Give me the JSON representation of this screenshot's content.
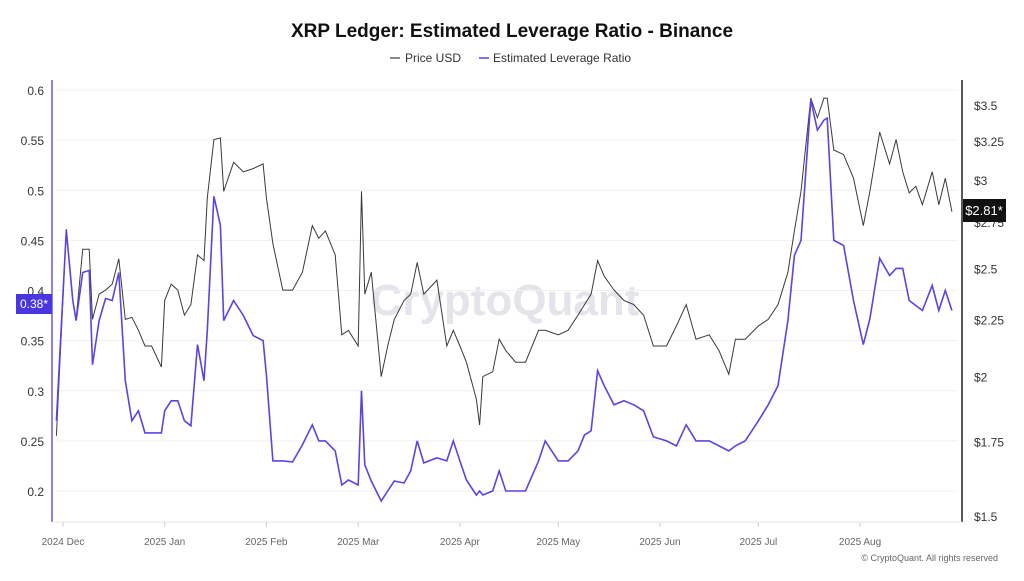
{
  "chart_data": {
    "type": "line",
    "title": "XRP Ledger: Estimated Leverage Ratio - Binance",
    "legend": {
      "placement": "top-center",
      "entries": [
        "Price USD",
        "Estimated Leverage Ratio"
      ]
    },
    "x_ticks": [
      {
        "date": "2024-12-01",
        "label": "2024 Dec"
      },
      {
        "date": "2025-01-01",
        "label": "2025 Jan"
      },
      {
        "date": "2025-02-01",
        "label": "2025 Feb"
      },
      {
        "date": "2025-03-01",
        "label": "2025 Mar"
      },
      {
        "date": "2025-04-01",
        "label": "2025 Apr"
      },
      {
        "date": "2025-05-01",
        "label": "2025 May"
      },
      {
        "date": "2025-06-01",
        "label": "2025 Jun"
      },
      {
        "date": "2025-07-01",
        "label": "2025 Jul"
      },
      {
        "date": "2025-08-01",
        "label": "2025 Aug"
      }
    ],
    "y_left": {
      "range": [
        0.17,
        0.61
      ],
      "scale": "linear",
      "ticks": [
        "0.6",
        "0.55",
        "0.5",
        "0.45",
        "0.4",
        "0.35",
        "0.3",
        "0.25",
        "0.2"
      ],
      "tick_values": [
        0.6,
        0.55,
        0.5,
        0.45,
        0.4,
        0.35,
        0.3,
        0.25,
        0.2
      ]
    },
    "y_right": {
      "range": [
        1.45,
        3.65
      ],
      "scale": "log",
      "ticks": [
        "$3.5",
        "$3.25",
        "$3",
        "$2.75",
        "$2.5",
        "$2.25",
        "$2",
        "$1.75",
        "$1.5"
      ],
      "tick_values": [
        3.5,
        3.25,
        3,
        2.75,
        2.5,
        2.25,
        2,
        1.75,
        1.5
      ]
    },
    "grid": true,
    "colors": {
      "price": "#3a3a3a",
      "leverage": "#5b44e0",
      "left_axis": "#6a5ae0",
      "right_axis": "#222222"
    },
    "last_value_labels": {
      "leverage": "0.38*",
      "price": "$2.81*"
    },
    "series": [
      {
        "name": "Price USD",
        "axis": "right",
        "points": [
          [
            "2024-11-29",
            1.77
          ],
          [
            "2024-12-02",
            2.71
          ],
          [
            "2024-12-04",
            2.34
          ],
          [
            "2024-12-05",
            2.25
          ],
          [
            "2024-12-07",
            2.6
          ],
          [
            "2024-12-09",
            2.6
          ],
          [
            "2024-12-10",
            2.25
          ],
          [
            "2024-12-12",
            2.37
          ],
          [
            "2024-12-14",
            2.39
          ],
          [
            "2024-12-16",
            2.42
          ],
          [
            "2024-12-18",
            2.55
          ],
          [
            "2024-12-20",
            2.25
          ],
          [
            "2024-12-22",
            2.26
          ],
          [
            "2024-12-24",
            2.2
          ],
          [
            "2024-12-26",
            2.13
          ],
          [
            "2024-12-28",
            2.13
          ],
          [
            "2024-12-31",
            2.04
          ],
          [
            "2025-01-01",
            2.34
          ],
          [
            "2025-01-03",
            2.42
          ],
          [
            "2025-01-05",
            2.39
          ],
          [
            "2025-01-07",
            2.27
          ],
          [
            "2025-01-09",
            2.32
          ],
          [
            "2025-01-11",
            2.57
          ],
          [
            "2025-01-13",
            2.54
          ],
          [
            "2025-01-14",
            2.89
          ],
          [
            "2025-01-16",
            3.26
          ],
          [
            "2025-01-18",
            3.27
          ],
          [
            "2025-01-19",
            2.93
          ],
          [
            "2025-01-22",
            3.11
          ],
          [
            "2025-01-25",
            3.05
          ],
          [
            "2025-01-28",
            3.07
          ],
          [
            "2025-01-31",
            3.1
          ],
          [
            "2025-02-01",
            2.89
          ],
          [
            "2025-02-03",
            2.63
          ],
          [
            "2025-02-06",
            2.39
          ],
          [
            "2025-02-09",
            2.39
          ],
          [
            "2025-02-12",
            2.48
          ],
          [
            "2025-02-15",
            2.73
          ],
          [
            "2025-02-17",
            2.66
          ],
          [
            "2025-02-19",
            2.7
          ],
          [
            "2025-02-22",
            2.57
          ],
          [
            "2025-02-24",
            2.18
          ],
          [
            "2025-02-26",
            2.2
          ],
          [
            "2025-03-01",
            2.13
          ],
          [
            "2025-03-02",
            2.93
          ],
          [
            "2025-03-03",
            2.37
          ],
          [
            "2025-03-05",
            2.48
          ],
          [
            "2025-03-08",
            2.0
          ],
          [
            "2025-03-10",
            2.13
          ],
          [
            "2025-03-12",
            2.25
          ],
          [
            "2025-03-15",
            2.34
          ],
          [
            "2025-03-17",
            2.37
          ],
          [
            "2025-03-19",
            2.53
          ],
          [
            "2025-03-21",
            2.37
          ],
          [
            "2025-03-25",
            2.44
          ],
          [
            "2025-03-28",
            2.13
          ],
          [
            "2025-03-30",
            2.2
          ],
          [
            "2025-04-01",
            2.13
          ],
          [
            "2025-04-03",
            2.06
          ],
          [
            "2025-04-06",
            1.91
          ],
          [
            "2025-04-07",
            1.81
          ],
          [
            "2025-04-08",
            2.0
          ],
          [
            "2025-04-11",
            2.02
          ],
          [
            "2025-04-13",
            2.16
          ],
          [
            "2025-04-15",
            2.11
          ],
          [
            "2025-04-18",
            2.06
          ],
          [
            "2025-04-21",
            2.06
          ],
          [
            "2025-04-25",
            2.2
          ],
          [
            "2025-04-27",
            2.2
          ],
          [
            "2025-05-01",
            2.18
          ],
          [
            "2025-05-04",
            2.2
          ],
          [
            "2025-05-07",
            2.27
          ],
          [
            "2025-05-09",
            2.32
          ],
          [
            "2025-05-11",
            2.37
          ],
          [
            "2025-05-13",
            2.54
          ],
          [
            "2025-05-15",
            2.46
          ],
          [
            "2025-05-18",
            2.39
          ],
          [
            "2025-05-21",
            2.34
          ],
          [
            "2025-05-24",
            2.32
          ],
          [
            "2025-05-27",
            2.27
          ],
          [
            "2025-05-30",
            2.13
          ],
          [
            "2025-06-03",
            2.13
          ],
          [
            "2025-06-06",
            2.22
          ],
          [
            "2025-06-09",
            2.32
          ],
          [
            "2025-06-12",
            2.16
          ],
          [
            "2025-06-16",
            2.18
          ],
          [
            "2025-06-19",
            2.11
          ],
          [
            "2025-06-22",
            2.01
          ],
          [
            "2025-06-24",
            2.16
          ],
          [
            "2025-06-27",
            2.16
          ],
          [
            "2025-07-01",
            2.22
          ],
          [
            "2025-07-04",
            2.25
          ],
          [
            "2025-07-07",
            2.32
          ],
          [
            "2025-07-10",
            2.48
          ],
          [
            "2025-07-12",
            2.7
          ],
          [
            "2025-07-14",
            2.93
          ],
          [
            "2025-07-17",
            3.55
          ],
          [
            "2025-07-19",
            3.41
          ],
          [
            "2025-07-21",
            3.55
          ],
          [
            "2025-07-22",
            3.55
          ],
          [
            "2025-07-24",
            3.19
          ],
          [
            "2025-07-27",
            3.16
          ],
          [
            "2025-07-30",
            3.01
          ],
          [
            "2025-08-02",
            2.73
          ],
          [
            "2025-08-04",
            2.93
          ],
          [
            "2025-08-07",
            3.31
          ],
          [
            "2025-08-10",
            3.1
          ],
          [
            "2025-08-12",
            3.26
          ],
          [
            "2025-08-14",
            3.05
          ],
          [
            "2025-08-16",
            2.92
          ],
          [
            "2025-08-18",
            2.96
          ],
          [
            "2025-08-20",
            2.85
          ],
          [
            "2025-08-23",
            3.05
          ],
          [
            "2025-08-25",
            2.85
          ],
          [
            "2025-08-27",
            3.01
          ],
          [
            "2025-08-29",
            2.81
          ]
        ]
      },
      {
        "name": "Estimated Leverage Ratio",
        "axis": "left",
        "points": [
          [
            "2024-11-29",
            0.27
          ],
          [
            "2024-12-02",
            0.46
          ],
          [
            "2024-12-04",
            0.39
          ],
          [
            "2024-12-05",
            0.37
          ],
          [
            "2024-12-07",
            0.418
          ],
          [
            "2024-12-09",
            0.42
          ],
          [
            "2024-12-10",
            0.326
          ],
          [
            "2024-12-12",
            0.37
          ],
          [
            "2024-12-14",
            0.392
          ],
          [
            "2024-12-16",
            0.39
          ],
          [
            "2024-12-18",
            0.418
          ],
          [
            "2024-12-20",
            0.31
          ],
          [
            "2024-12-22",
            0.27
          ],
          [
            "2024-12-24",
            0.28
          ],
          [
            "2024-12-26",
            0.258
          ],
          [
            "2024-12-28",
            0.258
          ],
          [
            "2024-12-31",
            0.258
          ],
          [
            "2025-01-01",
            0.28
          ],
          [
            "2025-01-03",
            0.29
          ],
          [
            "2025-01-05",
            0.29
          ],
          [
            "2025-01-07",
            0.27
          ],
          [
            "2025-01-09",
            0.265
          ],
          [
            "2025-01-11",
            0.346
          ],
          [
            "2025-01-13",
            0.31
          ],
          [
            "2025-01-14",
            0.36
          ],
          [
            "2025-01-16",
            0.494
          ],
          [
            "2025-01-18",
            0.465
          ],
          [
            "2025-01-19",
            0.37
          ],
          [
            "2025-01-22",
            0.39
          ],
          [
            "2025-01-25",
            0.375
          ],
          [
            "2025-01-28",
            0.355
          ],
          [
            "2025-01-31",
            0.35
          ],
          [
            "2025-02-01",
            0.316
          ],
          [
            "2025-02-03",
            0.23
          ],
          [
            "2025-02-06",
            0.23
          ],
          [
            "2025-02-09",
            0.229
          ],
          [
            "2025-02-12",
            0.246
          ],
          [
            "2025-02-15",
            0.266
          ],
          [
            "2025-02-17",
            0.25
          ],
          [
            "2025-02-19",
            0.25
          ],
          [
            "2025-02-22",
            0.24
          ],
          [
            "2025-02-24",
            0.206
          ],
          [
            "2025-02-26",
            0.211
          ],
          [
            "2025-03-01",
            0.206
          ],
          [
            "2025-03-02",
            0.3
          ],
          [
            "2025-03-03",
            0.226
          ],
          [
            "2025-03-05",
            0.21
          ],
          [
            "2025-03-08",
            0.19
          ],
          [
            "2025-03-10",
            0.2
          ],
          [
            "2025-03-12",
            0.21
          ],
          [
            "2025-03-15",
            0.208
          ],
          [
            "2025-03-17",
            0.22
          ],
          [
            "2025-03-19",
            0.25
          ],
          [
            "2025-03-21",
            0.228
          ],
          [
            "2025-03-25",
            0.233
          ],
          [
            "2025-03-28",
            0.23
          ],
          [
            "2025-03-30",
            0.25
          ],
          [
            "2025-04-01",
            0.23
          ],
          [
            "2025-04-03",
            0.211
          ],
          [
            "2025-04-06",
            0.196
          ],
          [
            "2025-04-07",
            0.2
          ],
          [
            "2025-04-08",
            0.196
          ],
          [
            "2025-04-11",
            0.2
          ],
          [
            "2025-04-13",
            0.22
          ],
          [
            "2025-04-15",
            0.2
          ],
          [
            "2025-04-18",
            0.2
          ],
          [
            "2025-04-21",
            0.2
          ],
          [
            "2025-04-25",
            0.23
          ],
          [
            "2025-04-27",
            0.25
          ],
          [
            "2025-05-01",
            0.23
          ],
          [
            "2025-05-04",
            0.23
          ],
          [
            "2025-05-07",
            0.24
          ],
          [
            "2025-05-09",
            0.256
          ],
          [
            "2025-05-11",
            0.26
          ],
          [
            "2025-05-13",
            0.32
          ],
          [
            "2025-05-15",
            0.305
          ],
          [
            "2025-05-18",
            0.286
          ],
          [
            "2025-05-21",
            0.29
          ],
          [
            "2025-05-24",
            0.286
          ],
          [
            "2025-05-27",
            0.28
          ],
          [
            "2025-05-30",
            0.254
          ],
          [
            "2025-06-03",
            0.25
          ],
          [
            "2025-06-06",
            0.245
          ],
          [
            "2025-06-09",
            0.266
          ],
          [
            "2025-06-12",
            0.25
          ],
          [
            "2025-06-16",
            0.25
          ],
          [
            "2025-06-19",
            0.245
          ],
          [
            "2025-06-22",
            0.24
          ],
          [
            "2025-06-24",
            0.245
          ],
          [
            "2025-06-27",
            0.25
          ],
          [
            "2025-07-01",
            0.27
          ],
          [
            "2025-07-04",
            0.286
          ],
          [
            "2025-07-07",
            0.305
          ],
          [
            "2025-07-10",
            0.37
          ],
          [
            "2025-07-12",
            0.435
          ],
          [
            "2025-07-14",
            0.45
          ],
          [
            "2025-07-17",
            0.59
          ],
          [
            "2025-07-19",
            0.56
          ],
          [
            "2025-07-21",
            0.57
          ],
          [
            "2025-07-22",
            0.572
          ],
          [
            "2025-07-24",
            0.45
          ],
          [
            "2025-07-27",
            0.445
          ],
          [
            "2025-07-30",
            0.39
          ],
          [
            "2025-08-02",
            0.346
          ],
          [
            "2025-08-04",
            0.372
          ],
          [
            "2025-08-07",
            0.432
          ],
          [
            "2025-08-10",
            0.415
          ],
          [
            "2025-08-12",
            0.422
          ],
          [
            "2025-08-14",
            0.422
          ],
          [
            "2025-08-16",
            0.39
          ],
          [
            "2025-08-18",
            0.385
          ],
          [
            "2025-08-20",
            0.38
          ],
          [
            "2025-08-23",
            0.405
          ],
          [
            "2025-08-25",
            0.38
          ],
          [
            "2025-08-27",
            0.4
          ],
          [
            "2025-08-29",
            0.38
          ]
        ]
      }
    ]
  },
  "watermark": "CryptoQuant",
  "copyright": "© CryptoQuant. All rights reserved"
}
